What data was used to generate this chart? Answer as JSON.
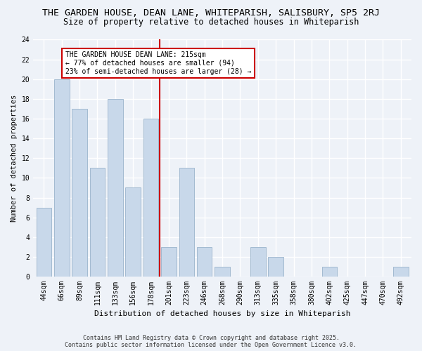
{
  "title": "THE GARDEN HOUSE, DEAN LANE, WHITEPARISH, SALISBURY, SP5 2RJ",
  "subtitle": "Size of property relative to detached houses in Whiteparish",
  "xlabel": "Distribution of detached houses by size in Whiteparish",
  "ylabel": "Number of detached properties",
  "bar_color": "#c8d8ea",
  "bar_edge_color": "#9ab4cc",
  "background_color": "#eef2f8",
  "grid_color": "#ffffff",
  "categories": [
    "44sqm",
    "66sqm",
    "89sqm",
    "111sqm",
    "133sqm",
    "156sqm",
    "178sqm",
    "201sqm",
    "223sqm",
    "246sqm",
    "268sqm",
    "290sqm",
    "313sqm",
    "335sqm",
    "358sqm",
    "380sqm",
    "402sqm",
    "425sqm",
    "447sqm",
    "470sqm",
    "492sqm"
  ],
  "values": [
    7,
    20,
    17,
    11,
    18,
    9,
    16,
    3,
    11,
    3,
    1,
    0,
    3,
    2,
    0,
    0,
    1,
    0,
    0,
    0,
    1
  ],
  "ylim": [
    0,
    24
  ],
  "yticks": [
    0,
    2,
    4,
    6,
    8,
    10,
    12,
    14,
    16,
    18,
    20,
    22,
    24
  ],
  "property_line_color": "#cc0000",
  "property_line_index": 7,
  "annotation_text": "THE GARDEN HOUSE DEAN LANE: 215sqm\n← 77% of detached houses are smaller (94)\n23% of semi-detached houses are larger (28) →",
  "annotation_box_color": "#cc0000",
  "footnote": "Contains HM Land Registry data © Crown copyright and database right 2025.\nContains public sector information licensed under the Open Government Licence v3.0.",
  "title_fontsize": 9.5,
  "subtitle_fontsize": 8.5,
  "xlabel_fontsize": 8.0,
  "ylabel_fontsize": 7.5,
  "tick_fontsize": 7.0,
  "annotation_fontsize": 7.0,
  "footnote_fontsize": 6.0
}
